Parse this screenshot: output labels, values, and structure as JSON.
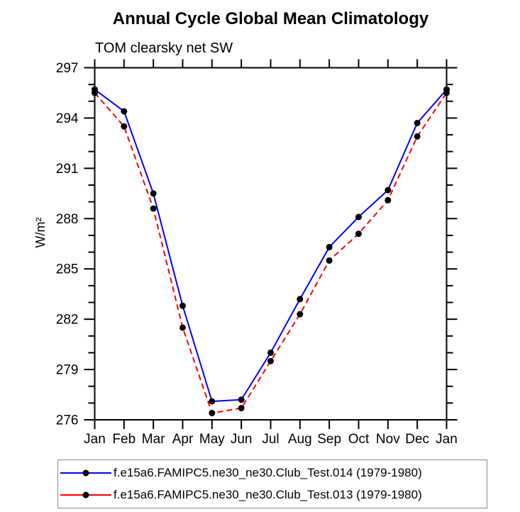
{
  "chart_data": {
    "type": "line",
    "title": "Annual Cycle Global Mean Climatology",
    "subtitle": "TOM clearsky net SW",
    "ylabel": "W/m²",
    "xlabel": "",
    "categories": [
      "Jan",
      "Feb",
      "Mar",
      "Apr",
      "May",
      "Jun",
      "Jul",
      "Aug",
      "Sep",
      "Oct",
      "Nov",
      "Dec",
      "Jan"
    ],
    "series": [
      {
        "name": "f.e15a6.FAMIPC5.ne30_ne30.Club_Test.014 (1979-1980)",
        "color": "#0000ff",
        "line_style": "solid",
        "marker": "filled-circle",
        "marker_color": "#000000",
        "values": [
          295.7,
          294.4,
          289.5,
          282.8,
          277.1,
          277.2,
          280.0,
          283.2,
          286.3,
          288.1,
          289.7,
          293.7,
          295.7
        ]
      },
      {
        "name": "f.e15a6.FAMIPC5.ne30_ne30.Club_Test.013 (1979-1980)",
        "color": "#ff0000",
        "line_style": "dashed",
        "marker": "filled-circle",
        "marker_color": "#000000",
        "values": [
          295.5,
          293.5,
          288.6,
          281.5,
          276.4,
          276.7,
          279.5,
          282.3,
          285.5,
          287.1,
          289.1,
          292.9,
          295.5
        ]
      }
    ],
    "ylim": [
      276,
      297
    ],
    "ytick_major_interval": 3,
    "ytick_minor_interval": 1,
    "ytick_labels": [
      "276",
      "279",
      "282",
      "285",
      "288",
      "291",
      "294",
      "297"
    ],
    "grid": false,
    "legend_position": "bottom",
    "axis_color": "#000000"
  }
}
